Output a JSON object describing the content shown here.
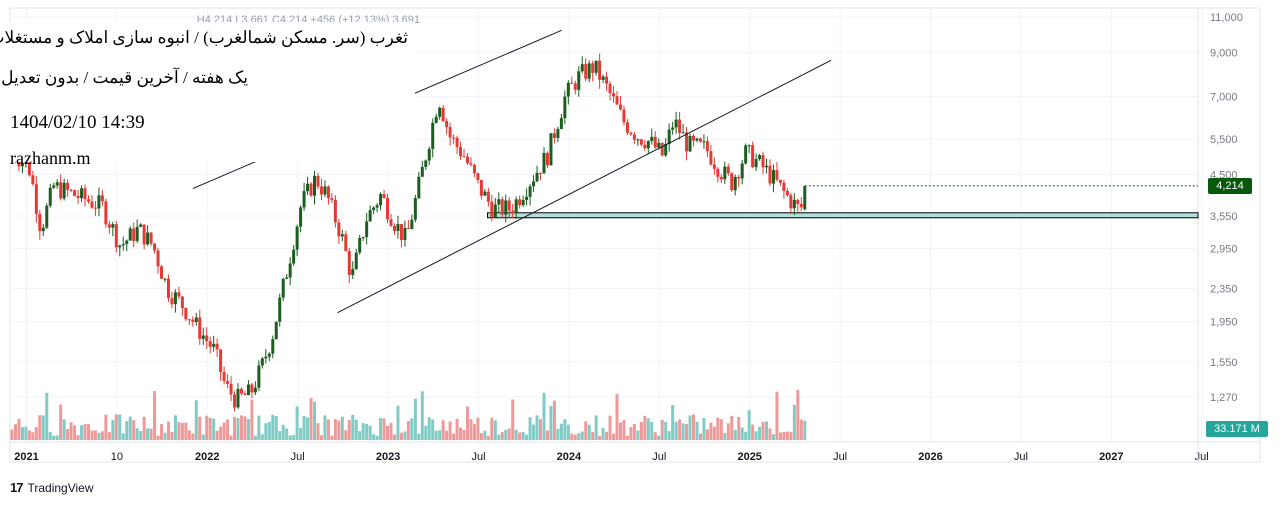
{
  "header": {
    "ohlc_text": "3,691 H4,214 L3,661 C4,214 +456 (+12.13%)",
    "title": "ثغرب (سر. مسکن شمالغرب) / انبوه سازی املاک و مستغلات",
    "subtitle": "یک هفته / آخرین قیمت / بدون تعدیل",
    "datetime": "1404/02/10 14:39",
    "author": "razhanm.m"
  },
  "badges": {
    "last_price": "4,214",
    "volume": "33.171 M"
  },
  "footer": {
    "brand": "TradingView",
    "brand_mark": "17"
  },
  "colors": {
    "up": "#1b5e20",
    "down": "#e53935",
    "vol_up": "#80cbc4",
    "vol_down": "#ef9a9a",
    "support_fill": "#b2dfdb",
    "last_price_badge": "#08580c",
    "volume_badge": "#26a69a"
  },
  "chart_data": {
    "type": "candlestick",
    "timeframe": "weekly",
    "y_scale": "log",
    "y_ticks": [
      "11,000",
      "9,000",
      "7,000",
      "5,500",
      "4,500",
      "3,550",
      "2,950",
      "2,350",
      "1,950",
      "1,550",
      "1,270"
    ],
    "y_tick_values": [
      11000,
      9000,
      7000,
      5500,
      4500,
      3550,
      2950,
      2350,
      1950,
      1550,
      1270
    ],
    "x_ticks": [
      {
        "label": "2021",
        "t": 2021.0,
        "bold": true
      },
      {
        "label": "10",
        "t": 2021.5,
        "bold": false
      },
      {
        "label": "2022",
        "t": 2022.0,
        "bold": true
      },
      {
        "label": "Jul",
        "t": 2022.5,
        "bold": false
      },
      {
        "label": "2023",
        "t": 2023.0,
        "bold": true
      },
      {
        "label": "Jul",
        "t": 2023.5,
        "bold": false
      },
      {
        "label": "2024",
        "t": 2024.0,
        "bold": true
      },
      {
        "label": "Jul",
        "t": 2024.5,
        "bold": false
      },
      {
        "label": "2025",
        "t": 2025.0,
        "bold": true
      },
      {
        "label": "Jul",
        "t": 2025.5,
        "bold": false
      },
      {
        "label": "2026",
        "t": 2026.0,
        "bold": true
      },
      {
        "label": "Jul",
        "t": 2026.5,
        "bold": false
      },
      {
        "label": "2027",
        "t": 2027.0,
        "bold": true
      },
      {
        "label": "Jul",
        "t": 2027.5,
        "bold": false
      }
    ],
    "anchor_closes": [
      [
        2020.92,
        5200
      ],
      [
        2021.02,
        4600
      ],
      [
        2021.08,
        3300
      ],
      [
        2021.15,
        4200
      ],
      [
        2021.3,
        3950
      ],
      [
        2021.42,
        3750
      ],
      [
        2021.52,
        3000
      ],
      [
        2021.62,
        3300
      ],
      [
        2021.7,
        3000
      ],
      [
        2021.78,
        2350
      ],
      [
        2021.86,
        2150
      ],
      [
        2021.94,
        1900
      ],
      [
        2022.04,
        1650
      ],
      [
        2022.1,
        1350
      ],
      [
        2022.16,
        1250
      ],
      [
        2022.24,
        1300
      ],
      [
        2022.3,
        1500
      ],
      [
        2022.36,
        1800
      ],
      [
        2022.44,
        2600
      ],
      [
        2022.52,
        3800
      ],
      [
        2022.6,
        4400
      ],
      [
        2022.66,
        4000
      ],
      [
        2022.74,
        3200
      ],
      [
        2022.8,
        2500
      ],
      [
        2022.88,
        3500
      ],
      [
        2022.96,
        4000
      ],
      [
        2023.04,
        3400
      ],
      [
        2023.1,
        3100
      ],
      [
        2023.18,
        4400
      ],
      [
        2023.28,
        7000
      ],
      [
        2023.34,
        5600
      ],
      [
        2023.42,
        5000
      ],
      [
        2023.5,
        4200
      ],
      [
        2023.58,
        3700
      ],
      [
        2023.68,
        3700
      ],
      [
        2023.78,
        4300
      ],
      [
        2023.88,
        5000
      ],
      [
        2023.98,
        7000
      ],
      [
        2024.06,
        7900
      ],
      [
        2024.14,
        8300
      ],
      [
        2024.22,
        7200
      ],
      [
        2024.3,
        6100
      ],
      [
        2024.38,
        5600
      ],
      [
        2024.45,
        5400
      ],
      [
        2024.52,
        5000
      ],
      [
        2024.58,
        6100
      ],
      [
        2024.66,
        5300
      ],
      [
        2024.76,
        5200
      ],
      [
        2024.84,
        4600
      ],
      [
        2024.9,
        4300
      ],
      [
        2024.98,
        5100
      ],
      [
        2025.05,
        4800
      ],
      [
        2025.12,
        4450
      ],
      [
        2025.2,
        4000
      ],
      [
        2025.28,
        3660
      ],
      [
        2025.32,
        4214
      ]
    ],
    "volume_bars_recent_million": 33.171,
    "last_close": 4214,
    "change": "+456 (+12.13%)",
    "support_zone": {
      "low": 3550,
      "high": 3700,
      "from_t": 2023.55
    },
    "trendlines": [
      {
        "t1": 2021.92,
        "p1": 4150,
        "t2": 2023.96,
        "p2": 10200,
        "label": "upper channel"
      },
      {
        "t1": 2022.72,
        "p1": 2050,
        "t2": 2025.45,
        "p2": 8600,
        "label": "lower channel"
      }
    ]
  }
}
